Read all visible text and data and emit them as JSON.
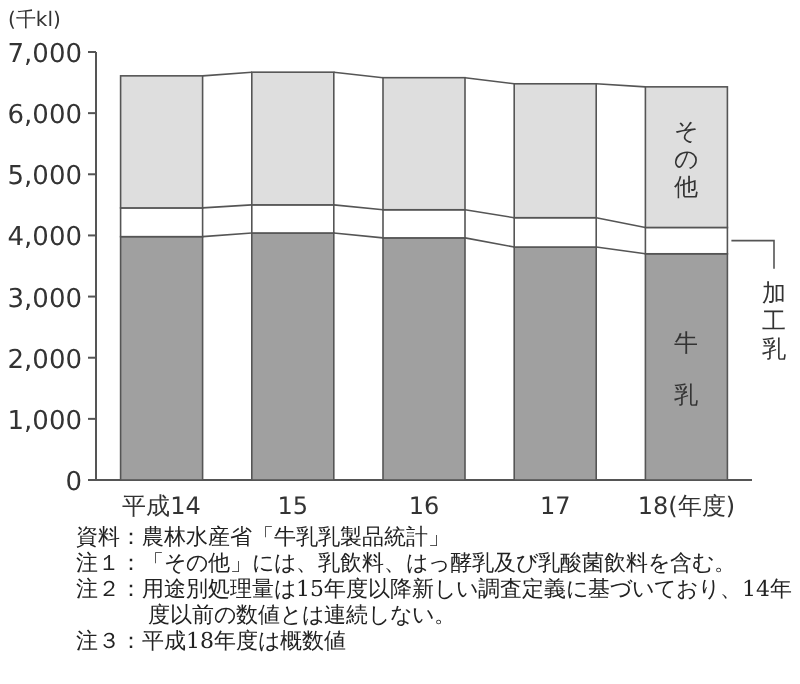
{
  "chart_data": {
    "type": "bar",
    "stacked": true,
    "ylabel": "(千kl)",
    "categories": [
      "平成14",
      "15",
      "16",
      "17",
      "18(年度)"
    ],
    "series": [
      {
        "name": "牛乳",
        "color": "#a0a0a0",
        "values": [
          3980,
          4040,
          3960,
          3810,
          3700
        ]
      },
      {
        "name": "加工乳",
        "color": "#ffffff",
        "values": [
          470,
          460,
          460,
          480,
          430
        ]
      },
      {
        "name": "その他",
        "color": "#dedede",
        "values": [
          2160,
          2170,
          2160,
          2190,
          2300
        ]
      }
    ],
    "ylim": [
      0,
      7000
    ],
    "yticks": [
      0,
      {
        "value": 1000,
        "label": "1,000"
      },
      {
        "value": 2000,
        "label": "2,000"
      },
      {
        "value": 3000,
        "label": "3,000"
      },
      {
        "value": 4000,
        "label": "4,000"
      },
      {
        "value": 5000,
        "label": "5,000"
      },
      {
        "value": 6000,
        "label": "6,000"
      },
      {
        "value": 7000,
        "label": "7,000"
      }
    ],
    "grid": false,
    "annotations": [
      "資料：農林水産省「牛乳乳製品統計」",
      "注１：「その他」には、乳飲料、はっ酵乳及び乳酸菌飲料を含む。",
      "注２：用途別処理量は15年度以降新しい調査定義に基づいており、14年度以前の数値とは連続しない。",
      "注３：平成18年度は概数値"
    ]
  }
}
